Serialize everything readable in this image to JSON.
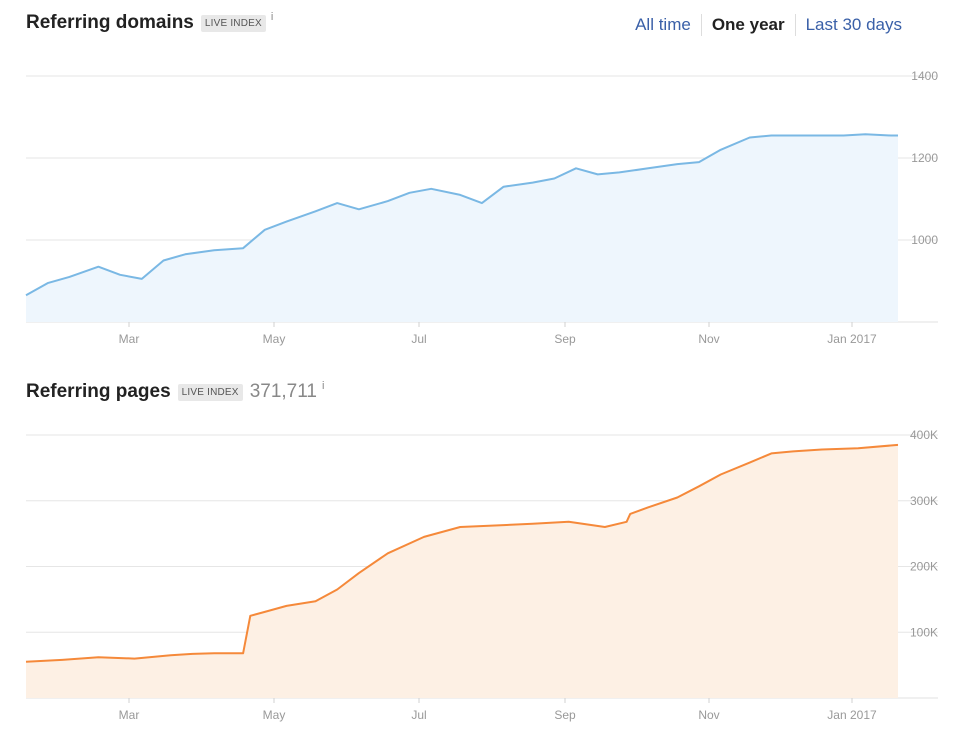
{
  "domains_chart": {
    "title": "Referring domains",
    "badge": "LIVE INDEX",
    "info": "i"
  },
  "range_nav": {
    "items": [
      {
        "label": "All time",
        "active": false
      },
      {
        "label": "One year",
        "active": true
      },
      {
        "label": "Last 30 days",
        "active": false
      }
    ]
  },
  "pages_chart": {
    "title": "Referring pages",
    "badge": "LIVE INDEX",
    "count": "371,711",
    "info": "i"
  },
  "colors": {
    "domains_line": "#7ab8e4",
    "domains_fill": "#eef6fd",
    "pages_line": "#f5893a",
    "pages_fill": "#fdf0e4"
  },
  "chart_data": [
    {
      "type": "area",
      "x_ticks": [
        "Mar",
        "May",
        "Jul",
        "Sep",
        "Nov",
        "Jan 2017"
      ],
      "y_ticks": [
        "1000",
        "1200",
        "1400"
      ],
      "ylim": [
        800,
        1400
      ],
      "grid": true,
      "points_x_months": [
        0,
        0.3,
        0.6,
        1.0,
        1.3,
        1.6,
        1.9,
        2.2,
        2.6,
        3.0,
        3.3,
        3.6,
        4.0,
        4.3,
        4.6,
        5.0,
        5.3,
        5.6,
        6.0,
        6.3,
        6.6,
        7.0,
        7.3,
        7.6,
        7.9,
        8.2,
        8.6,
        9.0,
        9.3,
        9.6,
        10.0,
        10.3,
        10.6,
        11.0,
        11.3,
        11.6,
        11.95,
        12.05
      ],
      "values": [
        865,
        895,
        910,
        935,
        915,
        905,
        950,
        965,
        975,
        980,
        1025,
        1045,
        1070,
        1090,
        1075,
        1095,
        1115,
        1125,
        1110,
        1090,
        1130,
        1140,
        1150,
        1175,
        1160,
        1165,
        1175,
        1185,
        1190,
        1220,
        1250,
        1255,
        1255,
        1255,
        1255,
        1258,
        1255,
        1255
      ]
    },
    {
      "type": "area",
      "x_ticks": [
        "Mar",
        "May",
        "Jul",
        "Sep",
        "Nov",
        "Jan 2017"
      ],
      "y_ticks": [
        "100K",
        "200K",
        "300K",
        "400K"
      ],
      "ylim": [
        0,
        400000
      ],
      "grid": true,
      "points_x_months": [
        0,
        0.5,
        1.0,
        1.5,
        2.0,
        2.3,
        2.6,
        3.0,
        3.1,
        3.3,
        3.6,
        4.0,
        4.3,
        4.6,
        5.0,
        5.5,
        6.0,
        6.6,
        7.0,
        7.5,
        8.0,
        8.3,
        8.35,
        8.6,
        9.0,
        9.3,
        9.6,
        10.0,
        10.3,
        10.6,
        11.0,
        11.5,
        12.05
      ],
      "values": [
        55000,
        58000,
        62000,
        60000,
        65000,
        67000,
        68000,
        68000,
        125000,
        131000,
        140000,
        147000,
        165000,
        190000,
        220000,
        245000,
        260000,
        263000,
        265000,
        268000,
        260000,
        268000,
        280000,
        290000,
        305000,
        322000,
        340000,
        358000,
        372000,
        375000,
        378000,
        380000,
        385000
      ]
    }
  ]
}
